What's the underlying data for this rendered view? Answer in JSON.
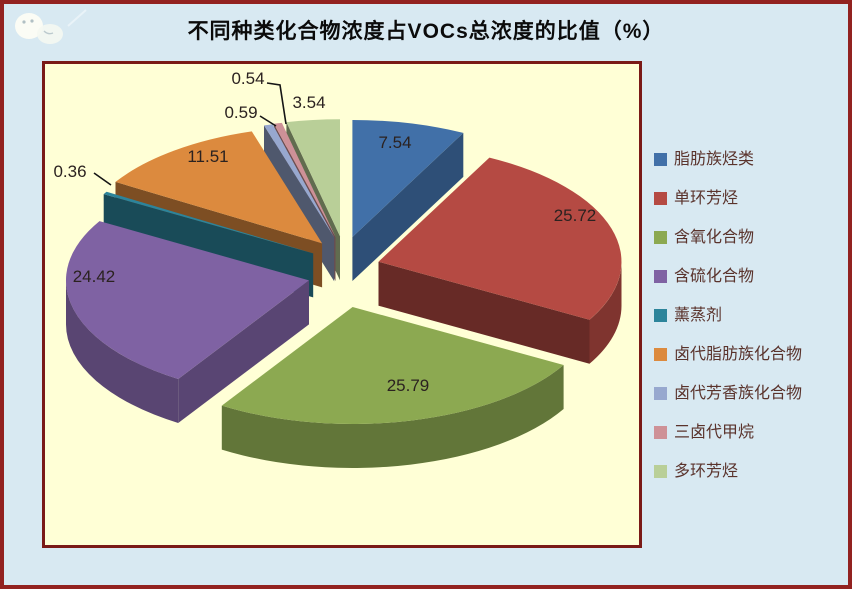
{
  "title": "不同种类化合物浓度占VOCs总浓度的比值（%）",
  "chart_data": {
    "type": "pie",
    "style": "3d-exploded",
    "title": "不同种类化合物浓度占VOCs总浓度的比值（%）",
    "unit": "%",
    "legend_position": "right",
    "categories": [
      "脂肪族烃类",
      "单环芳烃",
      "含氧化合物",
      "含硫化合物",
      "薰蒸剂",
      "卤代脂肪族化合物",
      "卤代芳香族化合物",
      "三卤代甲烷",
      "多环芳烃"
    ],
    "values": [
      7.54,
      25.72,
      25.79,
      24.42,
      0.36,
      11.51,
      0.59,
      0.54,
      3.54
    ],
    "labels": [
      "7.54",
      "25.72",
      "25.79",
      "24.42",
      "0.36",
      "11.51",
      "0.59",
      "0.54",
      "3.54"
    ],
    "colors": [
      "#4170A8",
      "#B54A43",
      "#8CA951",
      "#7F62A3",
      "#2C849B",
      "#DC8A3E",
      "#97A8CF",
      "#CE9197",
      "#B9CF98"
    ]
  },
  "colors": {
    "page_background": "#D8E9F2",
    "page_border": "#922220",
    "plot_background": "#FFFFD6",
    "plot_border": "#7A1A17",
    "title_text": "#0B0B0B",
    "data_label_text": "#2B2220",
    "legend_text": "#5A332C"
  }
}
